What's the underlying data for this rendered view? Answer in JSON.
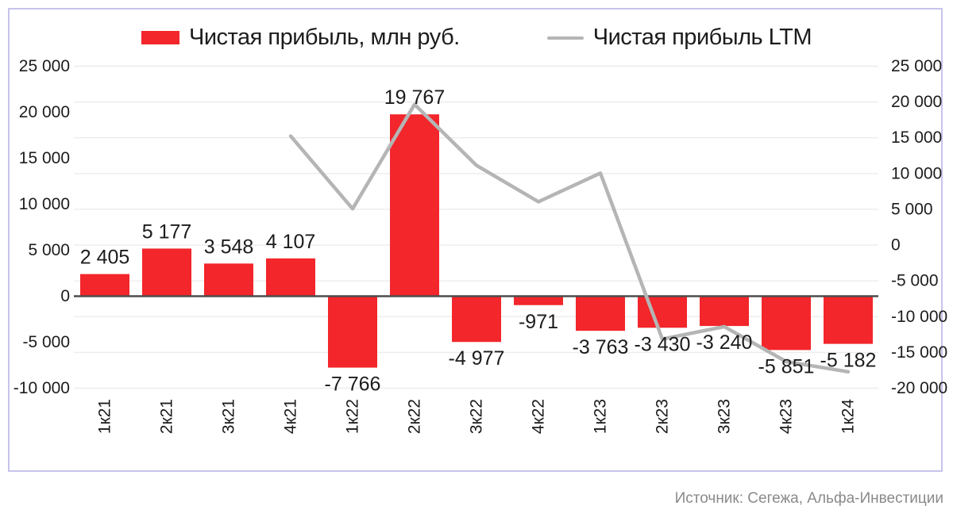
{
  "legend": {
    "bars_label": "Чистая прибыль, млн руб.",
    "line_label": "Чистая прибыль LTM"
  },
  "source_text": "Источник: Сегежа, Альфа-Инвестиции",
  "colors": {
    "bar": "#f2262b",
    "line": "#b5b5b5",
    "zero_line": "#4d4d4d",
    "grid": "#ececec",
    "text": "#1c1c1c",
    "source": "#8a8a8a",
    "frame": "#c6c4e9"
  },
  "chart_data": {
    "type": "bar",
    "title": "",
    "categories": [
      "1к21",
      "2к21",
      "3к21",
      "4к21",
      "1к22",
      "2к22",
      "3к22",
      "4к22",
      "1к23",
      "2к23",
      "3к23",
      "4к23",
      "1к24"
    ],
    "series": [
      {
        "name": "Чистая прибыль, млн руб.",
        "type": "bar",
        "axis": "left",
        "values": [
          2405,
          5177,
          3548,
          4107,
          -7766,
          19767,
          -4977,
          -971,
          -3763,
          -3430,
          -3240,
          -5851,
          -5182
        ],
        "labels": [
          "2 405",
          "5 177",
          "3 548",
          "4 107",
          "-7 766",
          "19 767",
          "-4 977",
          "-971",
          "-3 763",
          "-3 430",
          "-3 240",
          "-5 851",
          "-5 182"
        ]
      },
      {
        "name": "Чистая прибыль LTM",
        "type": "line",
        "axis": "right",
        "values": [
          null,
          null,
          null,
          15237,
          5066,
          19656,
          11131,
          6053,
          10056,
          -13141,
          -11404,
          -16284,
          -17703
        ]
      }
    ],
    "left_axis": {
      "max": 25000,
      "min": -10000,
      "step": 5000,
      "tick_labels": [
        "25 000",
        "20 000",
        "15 000",
        "10 000",
        "5 000",
        "0",
        "-5 000",
        "-10 000"
      ]
    },
    "right_axis": {
      "max": 25000,
      "min": -20000,
      "step": 5000,
      "tick_labels": [
        "25 000",
        "20 000",
        "15 000",
        "10 000",
        "5 000",
        "0",
        "-5 000",
        "-10 000",
        "-15 000",
        "-20 000"
      ]
    },
    "grid": "horizontal, aligned to right-axis ticks",
    "legend_position": "top-center"
  }
}
